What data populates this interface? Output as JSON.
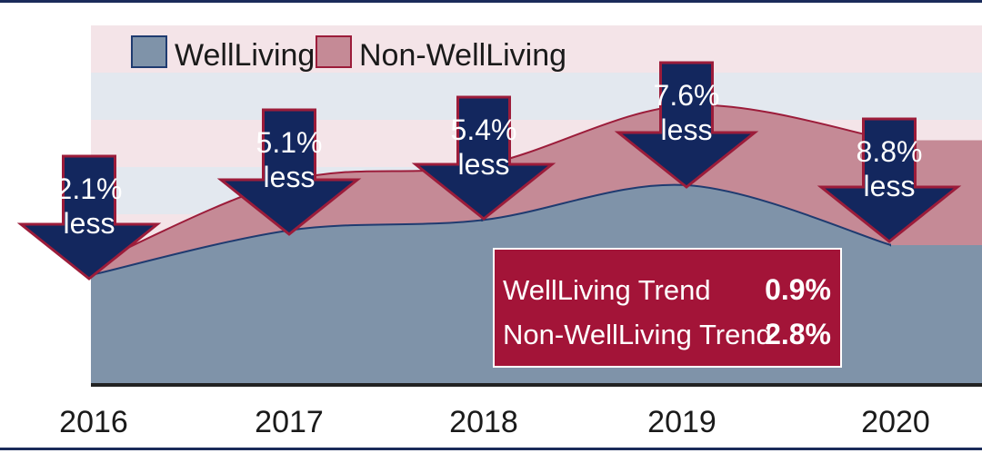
{
  "chart_data": {
    "type": "area",
    "x": [
      "2016",
      "2017",
      "2018",
      "2019",
      "2020"
    ],
    "series": [
      {
        "name": "WellLiving",
        "values": [
          22,
          31,
          33,
          40,
          28
        ]
      },
      {
        "name": "Non-WellLiving",
        "values": [
          24,
          41,
          44,
          56,
          49
        ]
      }
    ],
    "ylim": [
      0,
      72
    ],
    "grid": false,
    "legend": {
      "position": "top-left",
      "items": [
        "WellLiving",
        "Non-WellLiving"
      ]
    },
    "annotations": [
      {
        "x": "2016",
        "value": "2.1%",
        "text": "less"
      },
      {
        "x": "2017",
        "value": "5.1%",
        "text": "less"
      },
      {
        "x": "2018",
        "value": "5.4%",
        "text": "less"
      },
      {
        "x": "2019",
        "value": "7.6%",
        "text": "less"
      },
      {
        "x": "2020",
        "value": "8.8%",
        "text": "less"
      }
    ],
    "trend_box": [
      {
        "label": "WellLiving Trend",
        "value": "0.9%"
      },
      {
        "label": "Non-WellLiving Trend",
        "value": "2.8%"
      }
    ]
  },
  "colors": {
    "wellliving_fill": "#7f93a9",
    "wellliving_line": "#1f3b70",
    "nonwellliving_fill": "#c58a96",
    "nonwellliving_line": "#9c1c3a",
    "arrow_fill": "#13275e",
    "arrow_stroke": "#9c1c3a",
    "trend_box": "#a31438",
    "band_pink": "#f4e4e8",
    "band_blue": "#e3e8ef",
    "frame_navy": "#1a2b5a"
  }
}
